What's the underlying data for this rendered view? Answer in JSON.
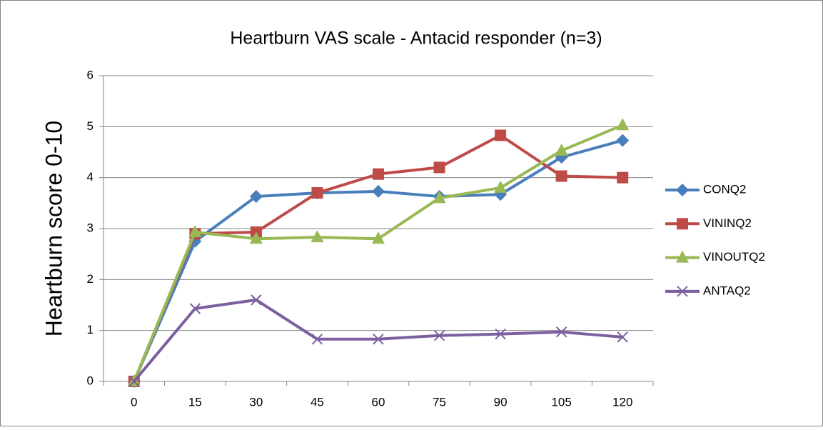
{
  "chart_data": {
    "type": "line",
    "title": "Heartburn VAS scale - Antacid responder (n=3)",
    "y_label": "Heartburn score 0-10",
    "categories": [
      "0",
      "15",
      "30",
      "45",
      "60",
      "75",
      "90",
      "105",
      "120"
    ],
    "series": [
      {
        "name": "CONQ2",
        "color": "#4a7ebb",
        "marker": "diamond",
        "values": [
          0,
          2.75,
          3.63,
          3.7,
          3.73,
          3.63,
          3.67,
          4.4,
          4.73
        ]
      },
      {
        "name": "VININQ2",
        "color": "#be4b48",
        "marker": "square",
        "values": [
          0,
          2.9,
          2.93,
          3.7,
          4.07,
          4.2,
          4.83,
          4.03,
          4.0
        ]
      },
      {
        "name": "VINOUTQ2",
        "color": "#98b954",
        "marker": "triangle",
        "values": [
          0,
          2.93,
          2.8,
          2.83,
          2.8,
          3.6,
          3.8,
          4.53,
          5.03
        ]
      },
      {
        "name": "ANTAQ2",
        "color": "#7d5fa0",
        "marker": "x",
        "values": [
          0,
          1.43,
          1.6,
          0.83,
          0.83,
          0.9,
          0.93,
          0.97,
          0.87
        ]
      }
    ],
    "ylim": [
      0,
      6
    ],
    "yticks": [
      0,
      1,
      2,
      3,
      4,
      5,
      6
    ],
    "grid": true,
    "legend": "right"
  }
}
